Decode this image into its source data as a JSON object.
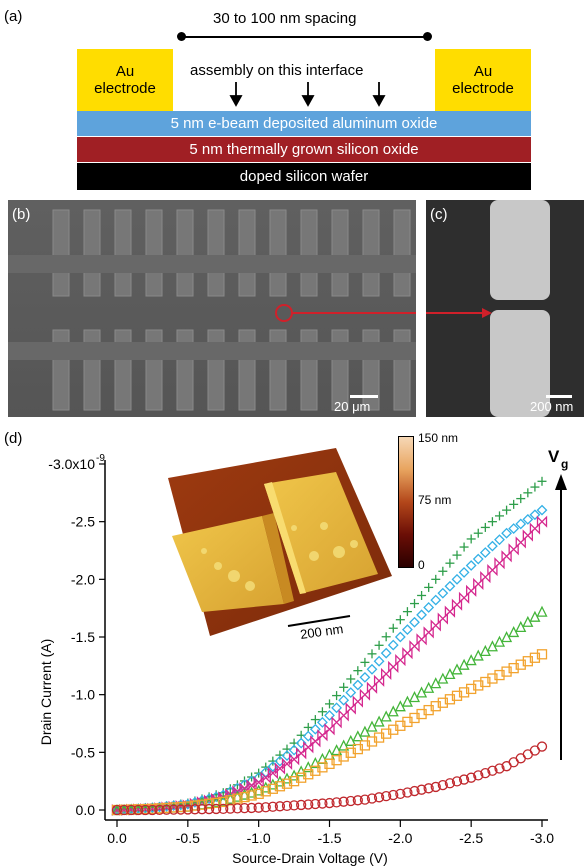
{
  "panel_a": {
    "label": "(a)",
    "spacing_label": "30 to 100 nm spacing",
    "interface_label": "assembly on this interface",
    "electrode_left": [
      "Au",
      "electrode"
    ],
    "electrode_right": [
      "Au",
      "electrode"
    ],
    "layers": [
      {
        "text": "5 nm e-beam deposited aluminum oxide",
        "color": "#5ea3dc",
        "text_color": "#ffffff"
      },
      {
        "text": "5 nm thermally grown silicon oxide",
        "color": "#a01f24",
        "text_color": "#ffffff"
      },
      {
        "text": "doped silicon wafer",
        "color": "#000000",
        "text_color": "#ffffff"
      }
    ],
    "electrode_color": "#ffdd00"
  },
  "panel_b": {
    "label": "(b)",
    "scale_bar": "20 μm"
  },
  "panel_c": {
    "label": "(c)",
    "scale_bar": "200 nm"
  },
  "panel_d": {
    "label": "(d)",
    "vg_label": "V",
    "vg_sub": "g",
    "inset": {
      "scale_bar": "200 nm",
      "colorbar_ticks": [
        "150 nm",
        "75 nm",
        "0"
      ]
    }
  },
  "chart_data": {
    "type": "scatter",
    "xlabel": "Source-Drain Voltage (V)",
    "ylabel": "Drain Current (A)",
    "x_ticks": [
      "0.0",
      "-0.5",
      "-1.0",
      "-1.5",
      "-2.0",
      "-2.5",
      "-3.0"
    ],
    "y_ticks": [
      "0.0",
      "-0.5",
      "-1.0",
      "-1.5",
      "-2.0",
      "-2.5",
      "-3.0x10"
    ],
    "y_ticks_exponent": "-9",
    "xlim": [
      0,
      -3.0
    ],
    "ylim": [
      0,
      -3e-09
    ],
    "series": [
      {
        "marker": "plus",
        "color": "#2e9e4a",
        "x": [
          0,
          -0.25,
          -0.5,
          -0.75,
          -1.0,
          -1.25,
          -1.5,
          -1.75,
          -2.0,
          -2.25,
          -2.5,
          -2.75,
          -3.0
        ],
        "y": [
          0,
          -2e-11,
          -6e-11,
          -1.5e-10,
          -3.2e-10,
          -5.8e-10,
          -9.2e-10,
          -1.28e-09,
          -1.65e-09,
          -2e-09,
          -2.35e-09,
          -2.6e-09,
          -2.85e-09
        ]
      },
      {
        "marker": "diamond",
        "color": "#33b0e6",
        "x": [
          0,
          -0.25,
          -0.5,
          -0.75,
          -1.0,
          -1.25,
          -1.5,
          -1.75,
          -2.0,
          -2.25,
          -2.5,
          -2.75,
          -3.0
        ],
        "y": [
          0,
          -2e-11,
          -5e-11,
          -1.3e-10,
          -2.8e-10,
          -5.2e-10,
          -8.2e-10,
          -1.15e-09,
          -1.5e-09,
          -1.82e-09,
          -2.12e-09,
          -2.4e-09,
          -2.6e-09
        ]
      },
      {
        "marker": "bowtie",
        "color": "#d5288e",
        "x": [
          0,
          -0.25,
          -0.5,
          -0.75,
          -1.0,
          -1.25,
          -1.5,
          -1.75,
          -2.0,
          -2.25,
          -2.5,
          -2.75,
          -3.0
        ],
        "y": [
          0,
          -1e-11,
          -4e-11,
          -1.1e-10,
          -2.4e-10,
          -4.4e-10,
          -7e-10,
          -1e-09,
          -1.3e-09,
          -1.6e-09,
          -1.9e-09,
          -2.2e-09,
          -2.5e-09
        ]
      },
      {
        "marker": "triangle",
        "color": "#44b53a",
        "x": [
          0,
          -0.25,
          -0.5,
          -0.75,
          -1.0,
          -1.25,
          -1.5,
          -1.75,
          -2.0,
          -2.25,
          -2.5,
          -2.75,
          -3.0
        ],
        "y": [
          0,
          -1e-11,
          -3e-11,
          -8e-11,
          -1.7e-10,
          -3e-10,
          -4.8e-10,
          -6.8e-10,
          -9e-10,
          -1.1e-09,
          -1.3e-09,
          -1.5e-09,
          -1.72e-09
        ]
      },
      {
        "marker": "square",
        "color": "#f2a32e",
        "x": [
          0,
          -0.25,
          -0.5,
          -0.75,
          -1.0,
          -1.25,
          -1.5,
          -1.75,
          -2.0,
          -2.25,
          -2.5,
          -2.75,
          -3.0
        ],
        "y": [
          0,
          -1e-11,
          -3e-11,
          -7e-11,
          -1.4e-10,
          -2.5e-10,
          -4e-10,
          -5.6e-10,
          -7.3e-10,
          -9e-10,
          -1.05e-09,
          -1.2e-09,
          -1.35e-09
        ]
      },
      {
        "marker": "circle",
        "color": "#c0282d",
        "x": [
          0,
          -0.25,
          -0.5,
          -0.75,
          -1.0,
          -1.25,
          -1.5,
          -1.75,
          -2.0,
          -2.25,
          -2.5,
          -2.75,
          -3.0
        ],
        "y": [
          0,
          0,
          -5e-12,
          -1e-11,
          -2e-11,
          -4e-11,
          -6e-11,
          -9e-11,
          -1.4e-10,
          -2e-10,
          -2.8e-10,
          -3.8e-10,
          -5.5e-10
        ]
      }
    ]
  }
}
